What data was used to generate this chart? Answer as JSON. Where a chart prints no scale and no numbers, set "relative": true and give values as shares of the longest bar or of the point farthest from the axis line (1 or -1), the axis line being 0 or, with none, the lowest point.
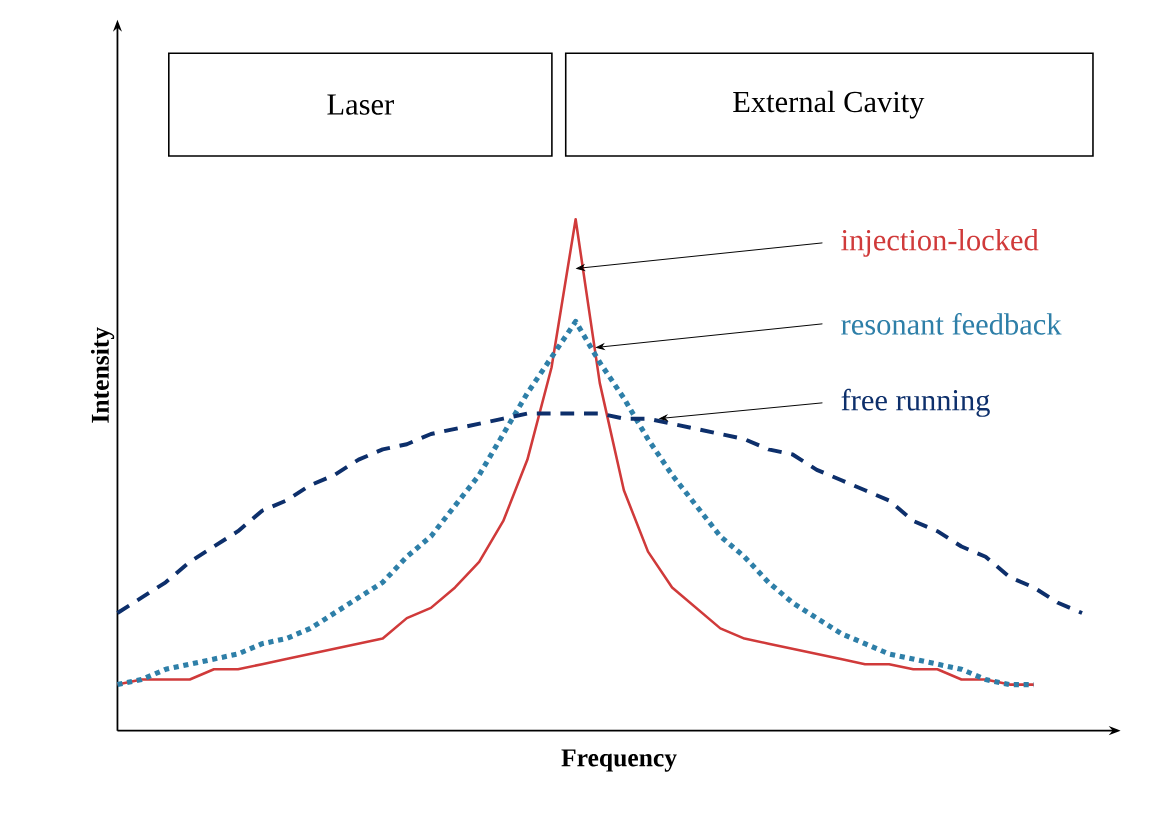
{
  "chart_data": {
    "type": "line",
    "relative": true,
    "xlabel": "Frequency",
    "ylabel": "Intensity",
    "legend": false,
    "marker": "none",
    "categories": [
      null,
      null,
      null,
      null,
      null,
      null,
      null,
      null,
      null,
      null,
      null,
      null,
      null,
      null,
      null,
      null,
      null,
      null,
      null,
      null,
      null,
      null,
      null,
      null,
      null,
      null,
      null,
      null,
      null,
      null,
      null,
      null,
      null,
      null,
      null,
      null,
      null,
      null,
      null,
      null,
      null
    ],
    "annotations": [
      "Laser",
      "External Cavity"
    ],
    "series": [
      {
        "name": "injection-locked",
        "color": "#d03a3a",
        "line_style": "solid",
        "values": [
          0.09,
          0.1,
          0.1,
          0.1,
          0.12,
          0.12,
          0.13,
          0.14,
          0.15,
          0.16,
          0.17,
          0.18,
          0.22,
          0.24,
          0.28,
          0.33,
          0.41,
          0.53,
          0.71,
          1,
          0.68,
          0.47,
          0.35,
          0.28,
          0.24,
          0.2,
          0.18,
          0.17,
          0.16,
          0.15,
          0.14,
          0.13,
          0.13,
          0.12,
          0.12,
          0.1,
          0.1,
          0.09,
          0.09,
          null,
          null
        ]
      },
      {
        "name": "resonant feedback",
        "color": "#2e7fa8",
        "line_style": "dotted",
        "values": [
          0.09,
          0.1,
          0.12,
          0.13,
          0.14,
          0.15,
          0.17,
          0.18,
          0.2,
          0.23,
          0.26,
          0.29,
          0.34,
          0.38,
          0.44,
          0.5,
          0.58,
          0.66,
          0.73,
          0.8,
          0.72,
          0.65,
          0.57,
          0.5,
          0.44,
          0.38,
          0.34,
          0.29,
          0.25,
          0.22,
          0.19,
          0.17,
          0.15,
          0.14,
          0.13,
          0.12,
          0.1,
          0.09,
          0.09,
          null,
          null
        ]
      },
      {
        "name": "free running",
        "color": "#0d2f6b",
        "line_style": "dashed",
        "values": [
          0.23,
          0.26,
          0.29,
          0.33,
          0.36,
          0.39,
          0.43,
          0.45,
          0.48,
          0.5,
          0.53,
          0.55,
          0.56,
          0.58,
          0.59,
          0.6,
          0.61,
          0.62,
          0.62,
          0.62,
          0.62,
          0.61,
          0.61,
          0.6,
          0.59,
          0.58,
          0.57,
          0.55,
          0.54,
          0.51,
          0.49,
          0.47,
          0.45,
          0.41,
          0.39,
          0.36,
          0.34,
          0.3,
          0.28,
          0.25,
          0.23
        ]
      }
    ]
  }
}
